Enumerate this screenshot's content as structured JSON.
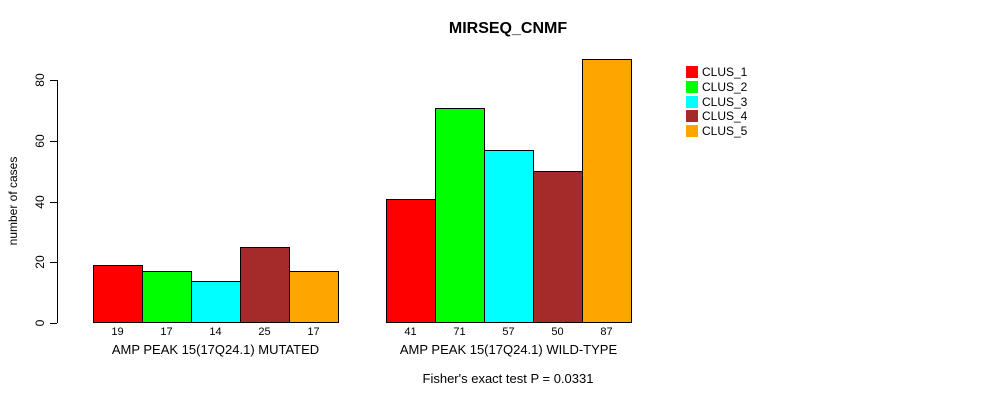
{
  "title": "MIRSEQ_CNMF",
  "ylabel": "number of cases",
  "caption": "Fisher's exact test P = 0.0331",
  "legend": {
    "items": [
      {
        "label": "CLUS_1",
        "color": "#FF0000"
      },
      {
        "label": "CLUS_2",
        "color": "#00FF00"
      },
      {
        "label": "CLUS_3",
        "color": "#00FFFF"
      },
      {
        "label": "CLUS_4",
        "color": "#A52A2A"
      },
      {
        "label": "CLUS_5",
        "color": "#FFA500"
      }
    ]
  },
  "chart_data": {
    "type": "bar",
    "title": "MIRSEQ_CNMF",
    "xlabel": "",
    "ylabel": "number of cases",
    "ylim": [
      0,
      87
    ],
    "yticks": [
      0,
      20,
      40,
      60,
      80
    ],
    "grid": false,
    "legend_position": "right",
    "bar_border_color": "#000000",
    "groups": [
      {
        "label": "AMP PEAK 15(17Q24.1) MUTATED",
        "values": [
          19,
          17,
          14,
          25,
          17
        ]
      },
      {
        "label": "AMP PEAK 15(17Q24.1) WILD-TYPE",
        "values": [
          41,
          71,
          57,
          50,
          87
        ]
      }
    ],
    "series": [
      {
        "name": "CLUS_1",
        "color": "#FF0000",
        "values": [
          19,
          41
        ]
      },
      {
        "name": "CLUS_2",
        "color": "#00FF00",
        "values": [
          17,
          71
        ]
      },
      {
        "name": "CLUS_3",
        "color": "#00FFFF",
        "values": [
          14,
          57
        ]
      },
      {
        "name": "CLUS_4",
        "color": "#A52A2A",
        "values": [
          25,
          50
        ]
      },
      {
        "name": "CLUS_5",
        "color": "#FFA500",
        "values": [
          17,
          87
        ]
      }
    ],
    "annotation": "Fisher's exact test P = 0.0331"
  }
}
